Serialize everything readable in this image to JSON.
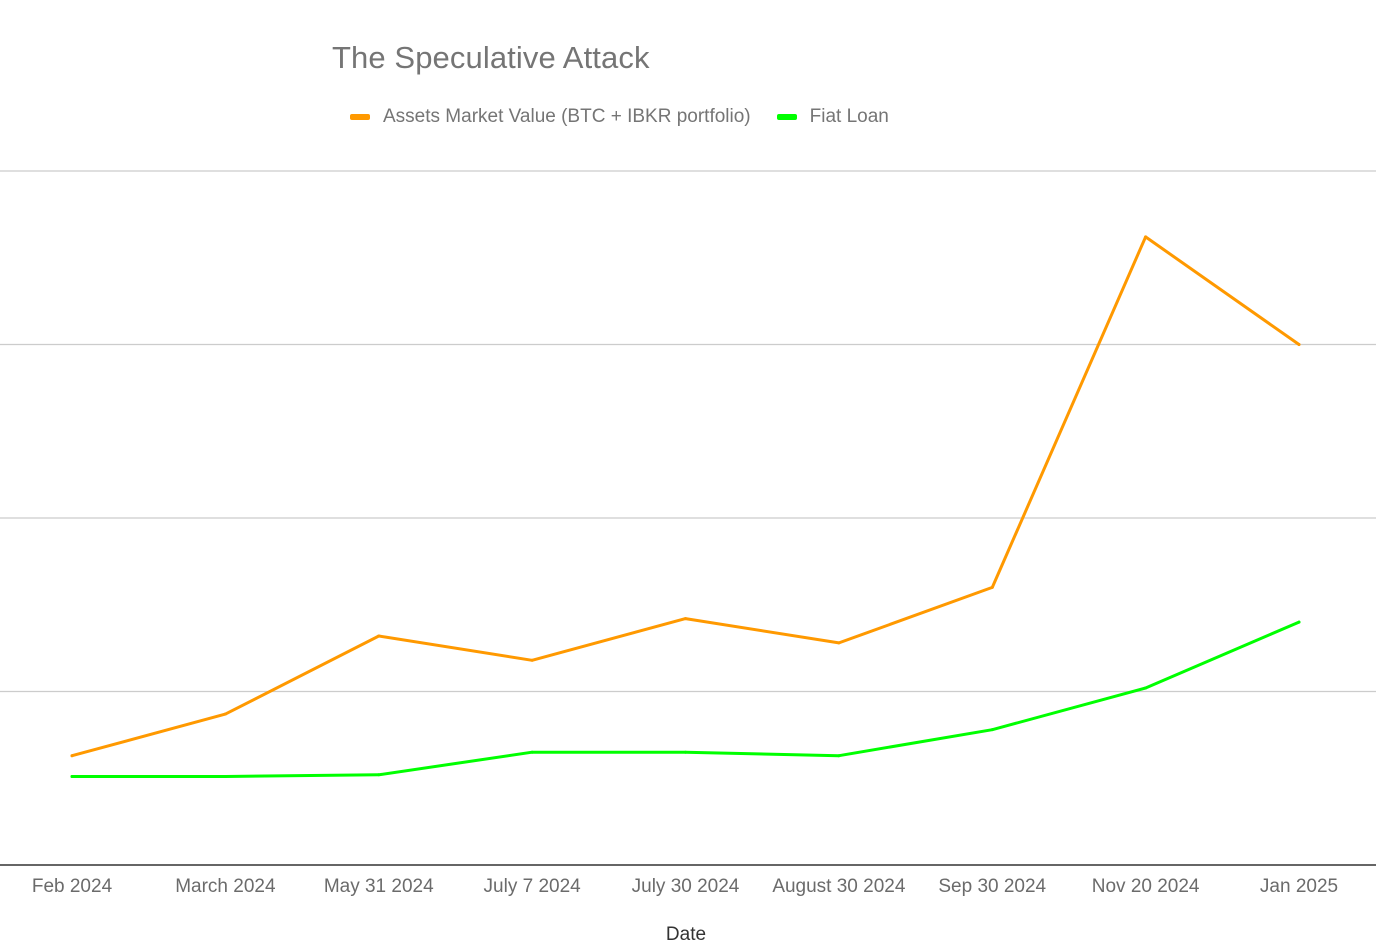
{
  "chart_data": {
    "type": "line",
    "title": "The Speculative Attack",
    "xlabel": "Date",
    "ylabel": "",
    "categories": [
      "Feb 2024",
      "March 2024",
      "May 31 2024",
      "July 7 2024",
      "July 30 2024",
      "August 30 2024",
      "Sep 30 2024",
      "Nov 20 2024",
      "Jan 2025"
    ],
    "ylim": [
      0,
      4
    ],
    "grid": true,
    "legend_position": "top",
    "series": [
      {
        "name": "Assets Market Value (BTC + IBKR portfolio)",
        "color": "#ff9900",
        "values": [
          0.63,
          0.87,
          1.32,
          1.18,
          1.42,
          1.28,
          1.6,
          3.62,
          3.0
        ]
      },
      {
        "name": "Fiat Loan",
        "color": "#00ff00",
        "values": [
          0.51,
          0.51,
          0.52,
          0.65,
          0.65,
          0.63,
          0.78,
          1.02,
          1.4
        ]
      }
    ]
  }
}
